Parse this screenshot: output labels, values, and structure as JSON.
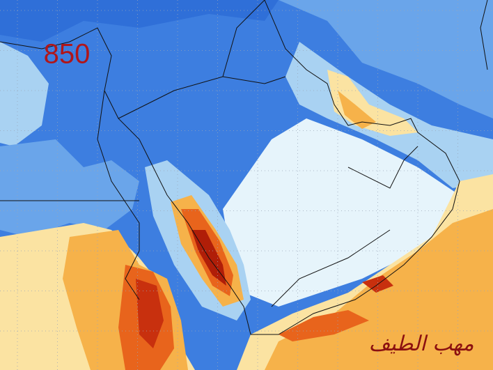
{
  "map": {
    "level_label": "850",
    "signature": "مهب الطيف"
  }
}
